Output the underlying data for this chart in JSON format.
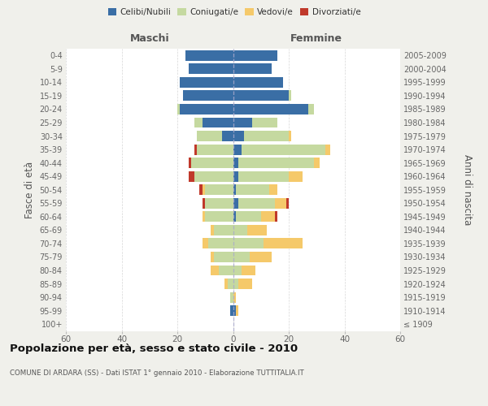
{
  "age_groups": [
    "100+",
    "95-99",
    "90-94",
    "85-89",
    "80-84",
    "75-79",
    "70-74",
    "65-69",
    "60-64",
    "55-59",
    "50-54",
    "45-49",
    "40-44",
    "35-39",
    "30-34",
    "25-29",
    "20-24",
    "15-19",
    "10-14",
    "5-9",
    "0-4"
  ],
  "birth_years": [
    "≤ 1909",
    "1910-1914",
    "1915-1919",
    "1920-1924",
    "1925-1929",
    "1930-1934",
    "1935-1939",
    "1940-1944",
    "1945-1949",
    "1950-1954",
    "1955-1959",
    "1960-1964",
    "1965-1969",
    "1970-1974",
    "1975-1979",
    "1980-1984",
    "1985-1989",
    "1990-1994",
    "1995-1999",
    "2000-2004",
    "2005-2009"
  ],
  "male": {
    "celibi": [
      0,
      1,
      0,
      0,
      0,
      0,
      0,
      0,
      0,
      0,
      0,
      0,
      0,
      0,
      4,
      11,
      19,
      18,
      19,
      16,
      17
    ],
    "coniugati": [
      0,
      0,
      1,
      2,
      5,
      7,
      9,
      7,
      10,
      10,
      10,
      14,
      15,
      13,
      9,
      3,
      1,
      0,
      0,
      0,
      0
    ],
    "vedovi": [
      0,
      0,
      0,
      1,
      3,
      1,
      2,
      1,
      1,
      0,
      1,
      0,
      0,
      0,
      0,
      0,
      0,
      0,
      0,
      0,
      0
    ],
    "divorziati": [
      0,
      0,
      0,
      0,
      0,
      0,
      0,
      0,
      0,
      1,
      1,
      2,
      1,
      1,
      0,
      0,
      0,
      0,
      0,
      0,
      0
    ]
  },
  "female": {
    "nubili": [
      0,
      1,
      0,
      0,
      0,
      0,
      0,
      0,
      1,
      2,
      1,
      2,
      2,
      3,
      4,
      7,
      27,
      20,
      18,
      14,
      16
    ],
    "coniugate": [
      0,
      0,
      0,
      2,
      3,
      6,
      11,
      5,
      9,
      13,
      12,
      18,
      27,
      30,
      16,
      9,
      2,
      1,
      0,
      0,
      0
    ],
    "vedove": [
      0,
      1,
      1,
      5,
      5,
      8,
      14,
      7,
      5,
      4,
      3,
      5,
      2,
      2,
      1,
      0,
      0,
      0,
      0,
      0,
      0
    ],
    "divorziate": [
      0,
      0,
      0,
      0,
      0,
      0,
      0,
      0,
      1,
      1,
      0,
      0,
      0,
      0,
      0,
      0,
      0,
      0,
      0,
      0,
      0
    ]
  },
  "colors": {
    "celibi_nubili": "#3a6ea5",
    "coniugati": "#c5d9a0",
    "vedovi": "#f5c96a",
    "divorziati": "#c0392b"
  },
  "xlim": 60,
  "title": "Popolazione per età, sesso e stato civile - 2010",
  "subtitle": "COMUNE DI ARDARA (SS) - Dati ISTAT 1° gennaio 2010 - Elaborazione TUTTITALIA.IT",
  "ylabel_left": "Fasce di età",
  "ylabel_right": "Anni di nascita",
  "label_maschi": "Maschi",
  "label_femmine": "Femmine",
  "legend_labels": [
    "Celibi/Nubili",
    "Coniugati/e",
    "Vedovi/e",
    "Divorziati/e"
  ],
  "bg_color": "#f0f0eb",
  "plot_bg": "#ffffff"
}
